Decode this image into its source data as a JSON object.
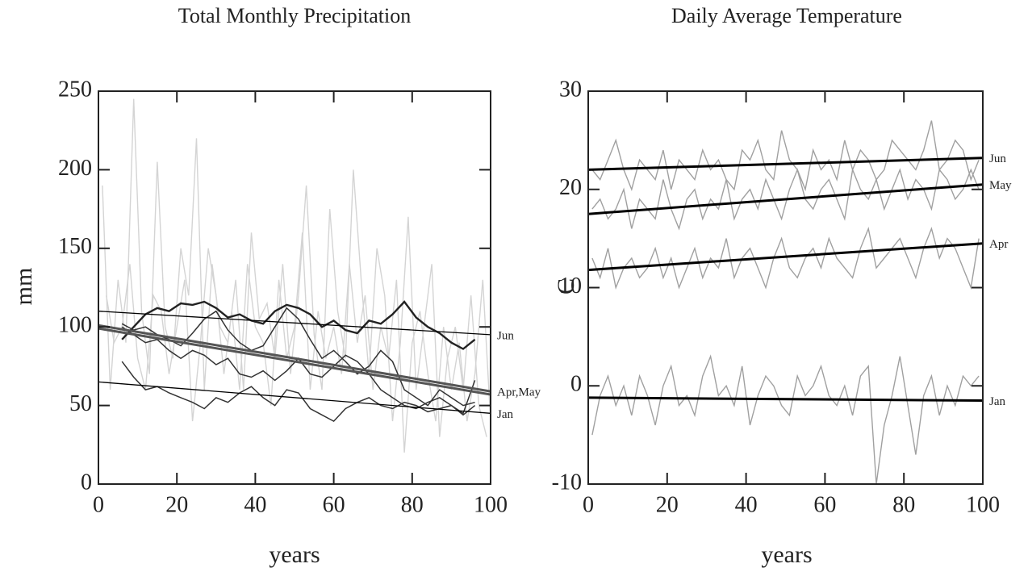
{
  "chart_data": [
    {
      "type": "line",
      "title": "Total Monthly Precipitation",
      "ylabel": "mm",
      "xlabel": "years",
      "xlim": [
        0,
        100
      ],
      "ylim": [
        0,
        250
      ],
      "xticks": [
        0,
        20,
        40,
        60,
        80,
        100
      ],
      "yticks": [
        0,
        50,
        100,
        150,
        200,
        250
      ],
      "series": [
        {
          "color": "#d4d4d4",
          "x": [
            1,
            3,
            5,
            7,
            9,
            11,
            13,
            15,
            17,
            19,
            21,
            23,
            25,
            27,
            29,
            31,
            33,
            35,
            37,
            39,
            41,
            43,
            45,
            47,
            49,
            51,
            53,
            55,
            57,
            59,
            61,
            63,
            65,
            67,
            69,
            71,
            73,
            75,
            77,
            79,
            81,
            83,
            85,
            87,
            89,
            91,
            93,
            95,
            97,
            99
          ],
          "values": [
            190,
            60,
            130,
            90,
            245,
            110,
            70,
            205,
            100,
            80,
            150,
            120,
            220,
            60,
            140,
            100,
            90,
            130,
            60,
            160,
            105,
            115,
            80,
            140,
            70,
            120,
            190,
            95,
            60,
            175,
            110,
            80,
            200,
            130,
            70,
            150,
            120,
            40,
            90,
            170,
            60,
            100,
            140,
            30,
            80,
            100,
            60,
            120,
            50,
            30
          ]
        },
        {
          "color": "#d4d4d4",
          "x": [
            2,
            4,
            6,
            8,
            10,
            12,
            14,
            16,
            18,
            20,
            22,
            24,
            26,
            28,
            30,
            32,
            34,
            36,
            38,
            40,
            42,
            44,
            46,
            48,
            50,
            52,
            54,
            56,
            58,
            60,
            62,
            64,
            66,
            68,
            70,
            72,
            74,
            76,
            78,
            80,
            82,
            84,
            86,
            88,
            90,
            92,
            94,
            96,
            98,
            100
          ],
          "values": [
            120,
            90,
            100,
            140,
            80,
            60,
            120,
            110,
            70,
            100,
            130,
            40,
            90,
            150,
            120,
            70,
            110,
            60,
            140,
            100,
            90,
            50,
            130,
            80,
            100,
            160,
            60,
            110,
            80,
            100,
            70,
            140,
            90,
            120,
            60,
            100,
            80,
            130,
            20,
            90,
            110,
            70,
            40,
            100,
            60,
            90,
            40,
            70,
            130,
            40
          ]
        },
        {
          "color": "#222222",
          "x": [
            6,
            9,
            12,
            15,
            18,
            21,
            24,
            27,
            30,
            33,
            36,
            39,
            42,
            45,
            48,
            51,
            54,
            57,
            60,
            63,
            66,
            69,
            72,
            75,
            78,
            81,
            84,
            87,
            90,
            93,
            96
          ],
          "values": [
            92,
            100,
            108,
            112,
            110,
            115,
            114,
            116,
            112,
            106,
            108,
            104,
            102,
            110,
            114,
            112,
            108,
            100,
            104,
            98,
            96,
            104,
            102,
            108,
            116,
            106,
            100,
            96,
            90,
            86,
            92
          ]
        },
        {
          "color": "#333333",
          "x": [
            6,
            9,
            12,
            15,
            18,
            21,
            24,
            27,
            30,
            33,
            36,
            39,
            42,
            45,
            48,
            51,
            54,
            57,
            60,
            63,
            66,
            69,
            72,
            75,
            78,
            81,
            84,
            87,
            90,
            93,
            96
          ],
          "values": [
            102,
            98,
            100,
            95,
            92,
            88,
            96,
            105,
            110,
            98,
            90,
            85,
            88,
            100,
            112,
            105,
            92,
            80,
            85,
            78,
            70,
            75,
            85,
            78,
            60,
            55,
            50,
            60,
            55,
            50,
            52
          ]
        },
        {
          "color": "#333333",
          "x": [
            6,
            9,
            12,
            15,
            18,
            21,
            24,
            27,
            30,
            33,
            36,
            39,
            42,
            45,
            48,
            51,
            54,
            57,
            60,
            63,
            66,
            69,
            72,
            75,
            78,
            81,
            84,
            87,
            90,
            93,
            96
          ],
          "values": [
            100,
            95,
            90,
            92,
            85,
            80,
            85,
            82,
            76,
            80,
            70,
            68,
            72,
            66,
            72,
            80,
            70,
            68,
            75,
            82,
            78,
            70,
            60,
            55,
            50,
            48,
            52,
            55,
            50,
            45,
            66
          ]
        },
        {
          "color": "#333333",
          "x": [
            6,
            9,
            12,
            15,
            18,
            21,
            24,
            27,
            30,
            33,
            36,
            39,
            42,
            45,
            48,
            51,
            54,
            57,
            60,
            63,
            66,
            69,
            72,
            75,
            78,
            81,
            84,
            87,
            90,
            93,
            96
          ],
          "values": [
            78,
            68,
            60,
            62,
            58,
            55,
            52,
            48,
            55,
            52,
            58,
            62,
            55,
            50,
            60,
            58,
            48,
            44,
            40,
            48,
            52,
            55,
            50,
            48,
            52,
            50,
            46,
            48,
            50,
            44,
            50
          ]
        },
        {
          "name": "Jun",
          "color": "#000000",
          "x": [
            0,
            100
          ],
          "values": [
            110,
            95
          ]
        },
        {
          "color": "#555555",
          "x": [
            0,
            100
          ],
          "values": [
            99,
            57
          ]
        },
        {
          "name": "Apr,May",
          "color": "#555555",
          "x": [
            0,
            100
          ],
          "values": [
            101,
            59
          ]
        },
        {
          "name": "Jan",
          "color": "#000000",
          "x": [
            0,
            100
          ],
          "values": [
            65,
            45
          ]
        }
      ]
    },
    {
      "type": "line",
      "title": "Daily Average Temperature",
      "ylabel": "C",
      "xlabel": "years",
      "xlim": [
        0,
        100
      ],
      "ylim": [
        -10,
        30
      ],
      "xticks": [
        0,
        20,
        40,
        60,
        80,
        100
      ],
      "yticks": [
        -10,
        0,
        10,
        20,
        30
      ],
      "series": [
        {
          "color": "#a0a0a0",
          "x": [
            1,
            3,
            5,
            7,
            9,
            11,
            13,
            15,
            17,
            19,
            21,
            23,
            25,
            27,
            29,
            31,
            33,
            35,
            37,
            39,
            41,
            43,
            45,
            47,
            49,
            51,
            53,
            55,
            57,
            59,
            61,
            63,
            65,
            67,
            69,
            71,
            73,
            75,
            77,
            79,
            81,
            83,
            85,
            87,
            89,
            91,
            93,
            95,
            97,
            99
          ],
          "values": [
            22,
            21,
            23,
            25,
            22,
            20,
            23,
            22,
            21,
            24,
            20,
            23,
            22,
            21,
            24,
            22,
            23,
            21,
            20,
            24,
            23,
            25,
            22,
            21,
            26,
            23,
            22,
            20,
            24,
            22,
            23,
            21,
            25,
            22,
            24,
            23,
            21,
            22,
            25,
            24,
            23,
            22,
            24,
            27,
            22,
            23,
            25,
            24,
            21,
            23
          ]
        },
        {
          "color": "#a0a0a0",
          "x": [
            1,
            3,
            5,
            7,
            9,
            11,
            13,
            15,
            17,
            19,
            21,
            23,
            25,
            27,
            29,
            31,
            33,
            35,
            37,
            39,
            41,
            43,
            45,
            47,
            49,
            51,
            53,
            55,
            57,
            59,
            61,
            63,
            65,
            67,
            69,
            71,
            73,
            75,
            77,
            79,
            81,
            83,
            85,
            87,
            89,
            91,
            93,
            95,
            97,
            99
          ],
          "values": [
            18,
            19,
            17,
            18,
            20,
            16,
            19,
            18,
            17,
            21,
            18,
            16,
            19,
            20,
            17,
            19,
            18,
            21,
            17,
            19,
            20,
            18,
            21,
            19,
            17,
            20,
            22,
            19,
            18,
            20,
            21,
            19,
            17,
            22,
            20,
            19,
            21,
            18,
            20,
            22,
            19,
            21,
            20,
            18,
            22,
            21,
            19,
            20,
            22,
            20
          ]
        },
        {
          "color": "#a0a0a0",
          "x": [
            1,
            3,
            5,
            7,
            9,
            11,
            13,
            15,
            17,
            19,
            21,
            23,
            25,
            27,
            29,
            31,
            33,
            35,
            37,
            39,
            41,
            43,
            45,
            47,
            49,
            51,
            53,
            55,
            57,
            59,
            61,
            63,
            65,
            67,
            69,
            71,
            73,
            75,
            77,
            79,
            81,
            83,
            85,
            87,
            89,
            91,
            93,
            95,
            97,
            99
          ],
          "values": [
            13,
            11,
            14,
            10,
            12,
            13,
            11,
            12,
            14,
            11,
            13,
            10,
            12,
            14,
            11,
            13,
            12,
            15,
            11,
            13,
            14,
            12,
            10,
            13,
            15,
            12,
            11,
            13,
            14,
            12,
            15,
            13,
            12,
            11,
            14,
            16,
            12,
            13,
            14,
            15,
            13,
            11,
            14,
            16,
            13,
            15,
            14,
            12,
            10,
            15
          ]
        },
        {
          "color": "#a0a0a0",
          "x": [
            1,
            3,
            5,
            7,
            9,
            11,
            13,
            15,
            17,
            19,
            21,
            23,
            25,
            27,
            29,
            31,
            33,
            35,
            37,
            39,
            41,
            43,
            45,
            47,
            49,
            51,
            53,
            55,
            57,
            59,
            61,
            63,
            65,
            67,
            69,
            71,
            73,
            75,
            77,
            79,
            81,
            83,
            85,
            87,
            89,
            91,
            93,
            95,
            97,
            99
          ],
          "values": [
            -5,
            -1,
            1,
            -2,
            0,
            -3,
            1,
            -1,
            -4,
            0,
            2,
            -2,
            -1,
            -3,
            1,
            3,
            -1,
            0,
            -2,
            2,
            -4,
            -1,
            1,
            0,
            -2,
            -3,
            1,
            -1,
            0,
            2,
            -1,
            -2,
            0,
            -3,
            1,
            2,
            -10,
            -4,
            -1,
            3,
            -2,
            -7,
            -1,
            1,
            -3,
            0,
            -2,
            1,
            0,
            1
          ]
        },
        {
          "name": "Jun",
          "color": "#000000",
          "x": [
            0,
            100
          ],
          "values": [
            22,
            23.2
          ]
        },
        {
          "name": "May",
          "color": "#000000",
          "x": [
            0,
            100
          ],
          "values": [
            17.5,
            20.5
          ]
        },
        {
          "name": "Apr",
          "color": "#000000",
          "x": [
            0,
            100
          ],
          "values": [
            11.8,
            14.5
          ]
        },
        {
          "name": "Jan",
          "color": "#000000",
          "x": [
            0,
            100
          ],
          "values": [
            -1.2,
            -1.5
          ]
        }
      ]
    }
  ]
}
